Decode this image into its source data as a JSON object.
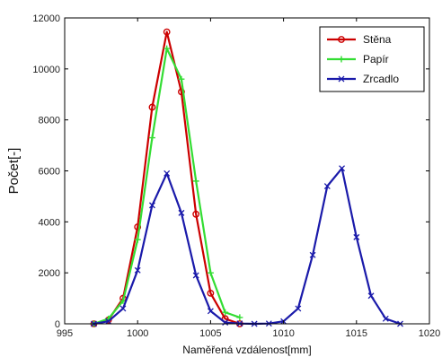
{
  "chart_data": {
    "type": "line",
    "title": "",
    "xlabel": "Naměřená vzdálenost[mm]",
    "ylabel": "Počet[-]",
    "xlim": [
      995,
      1020
    ],
    "ylim": [
      0,
      12000
    ],
    "x_ticks": [
      "995",
      "1000",
      "1005",
      "1010",
      "1015",
      "1020"
    ],
    "y_ticks": [
      "0",
      "2000",
      "4000",
      "6000",
      "8000",
      "10000",
      "12000"
    ],
    "grid": false,
    "legend_position": "top-right",
    "series": [
      {
        "name": "Stěna",
        "color": "#cc0000",
        "marker": "circle",
        "x": [
          997,
          998,
          999,
          1000,
          1001,
          1002,
          1003,
          1004,
          1005,
          1006,
          1007
        ],
        "y": [
          0,
          150,
          1000,
          3800,
          8500,
          11450,
          9100,
          4300,
          1200,
          200,
          0
        ]
      },
      {
        "name": "Papír",
        "color": "#33dd33",
        "marker": "plus",
        "x": [
          997,
          998,
          999,
          1000,
          1001,
          1002,
          1003,
          1004,
          1005,
          1006,
          1007
        ],
        "y": [
          0,
          200,
          900,
          3300,
          7300,
          10800,
          9600,
          5600,
          2000,
          450,
          250
        ]
      },
      {
        "name": "Zrcadlo",
        "color": "#1a1aaa",
        "marker": "x",
        "x": [
          997,
          998,
          999,
          1000,
          1001,
          1002,
          1003,
          1004,
          1005,
          1006,
          1007,
          1008,
          1009,
          1010,
          1011,
          1012,
          1013,
          1014,
          1015,
          1016,
          1017,
          1018
        ],
        "y": [
          0,
          100,
          600,
          2100,
          4650,
          5900,
          4350,
          1900,
          500,
          50,
          10,
          0,
          10,
          100,
          600,
          2700,
          5400,
          6100,
          3400,
          1100,
          200,
          0
        ]
      }
    ]
  }
}
